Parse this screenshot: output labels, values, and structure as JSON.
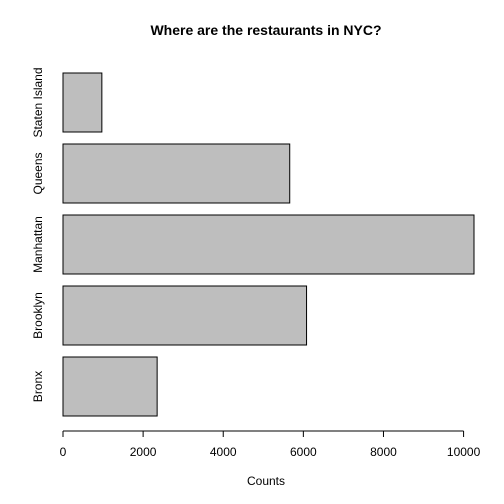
{
  "chart_data": {
    "type": "bar",
    "orientation": "horizontal",
    "title": "Where are the restaurants in NYC?",
    "xlabel": "Counts",
    "ylabel": "",
    "categories": [
      "Bronx",
      "Brooklyn",
      "Manhattan",
      "Queens",
      "Staten Island"
    ],
    "values": [
      2350,
      6080,
      10260,
      5660,
      970
    ],
    "xlim": [
      0,
      10260
    ],
    "x_ticks": [
      0,
      2000,
      4000,
      6000,
      8000,
      10000
    ],
    "grid": false,
    "legend": "none",
    "colors": {
      "bar_fill": "#bebebe",
      "bar_stroke": "#000000"
    }
  }
}
